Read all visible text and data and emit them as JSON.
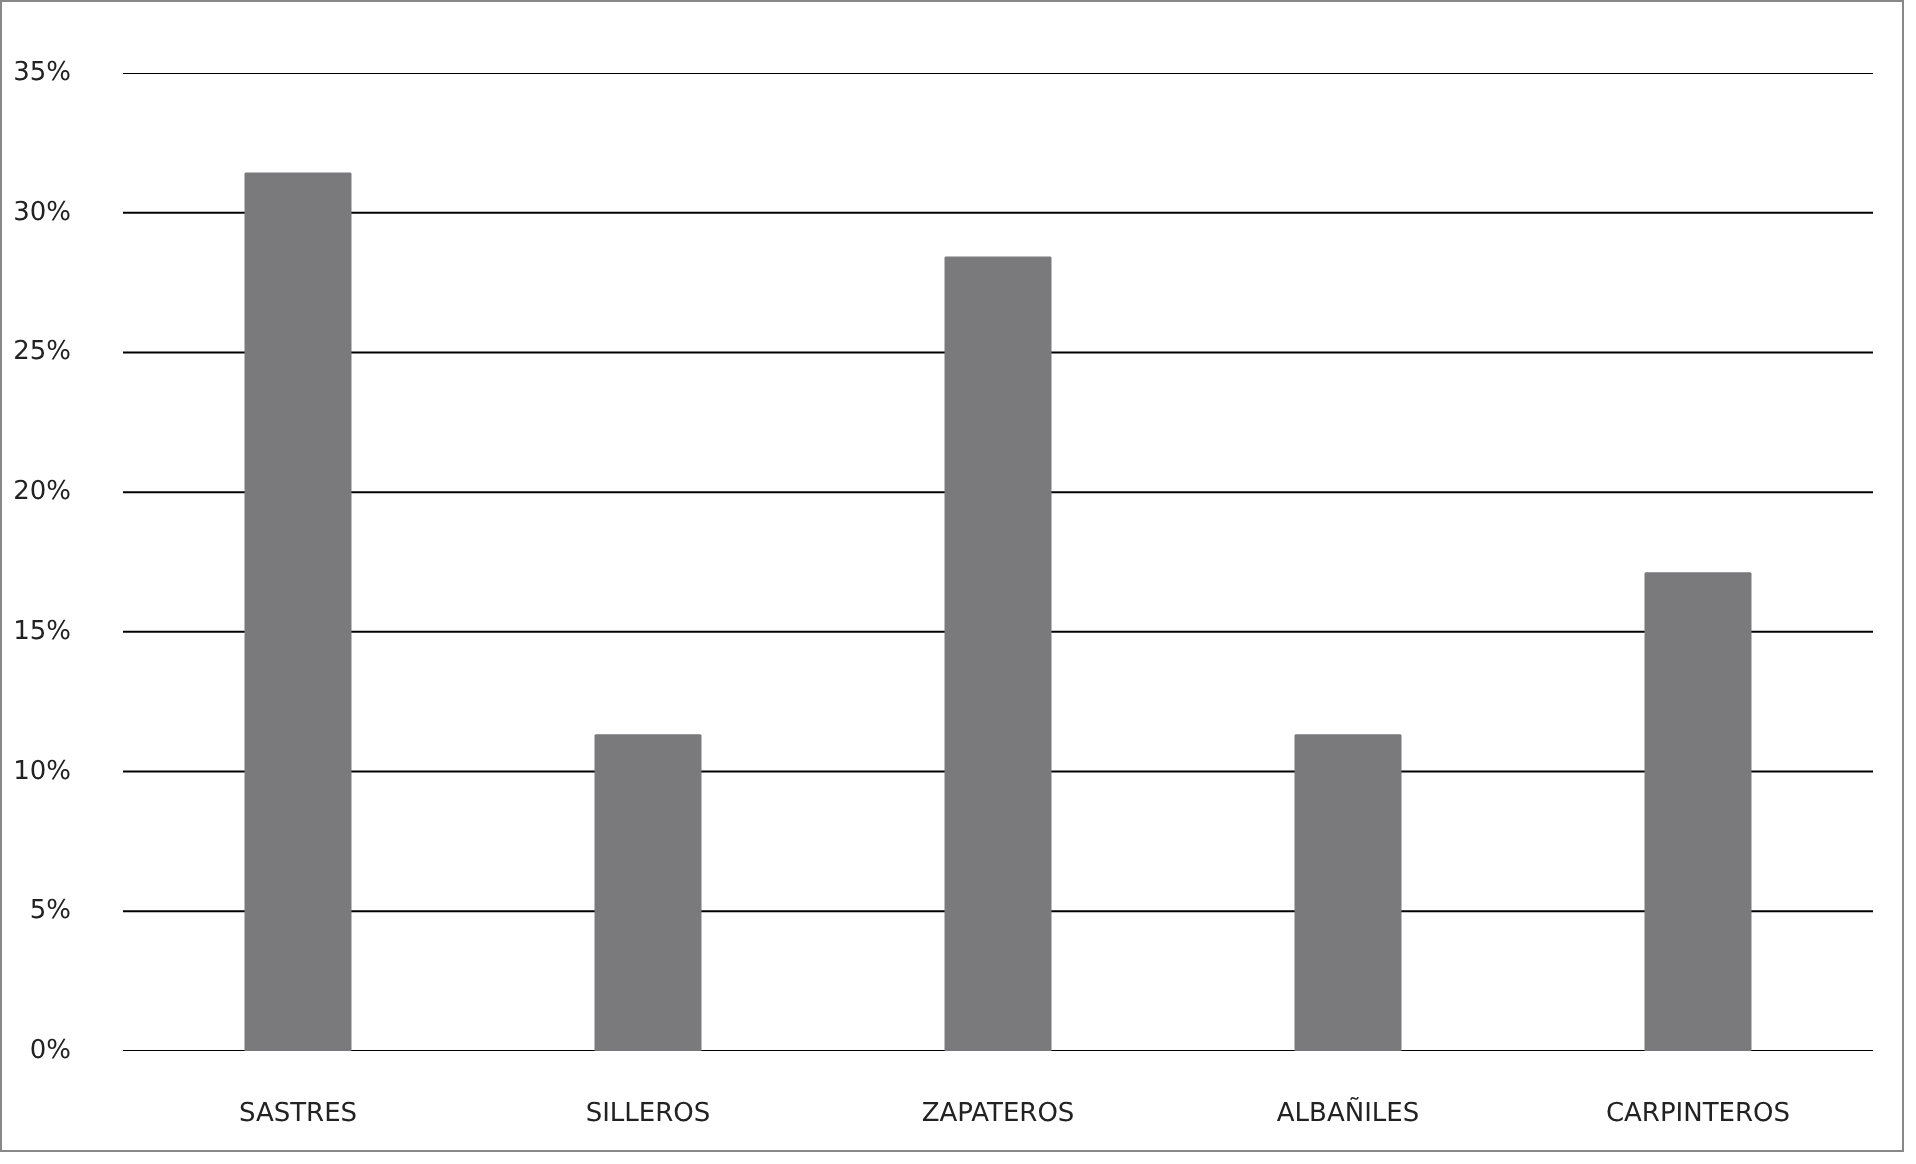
{
  "chart_data": {
    "type": "bar",
    "categories": [
      "SASTRES",
      "SILLEROS",
      "ZAPATEROS",
      "ALBAÑILES",
      "CARPINTEROS"
    ],
    "values": [
      31.4,
      11.3,
      28.4,
      11.3,
      17.1
    ],
    "color": "#7a7a7c",
    "ylim": [
      0,
      35
    ],
    "yticks": [
      {
        "value": 0,
        "label": "0%"
      },
      {
        "value": 5,
        "label": "5%"
      },
      {
        "value": 10,
        "label": "10%"
      },
      {
        "value": 15,
        "label": "15%"
      },
      {
        "value": 20,
        "label": "20%"
      },
      {
        "value": 25,
        "label": "25%"
      },
      {
        "value": 30,
        "label": "30%"
      },
      {
        "value": 35,
        "label": "35%"
      }
    ],
    "grid": "y"
  }
}
